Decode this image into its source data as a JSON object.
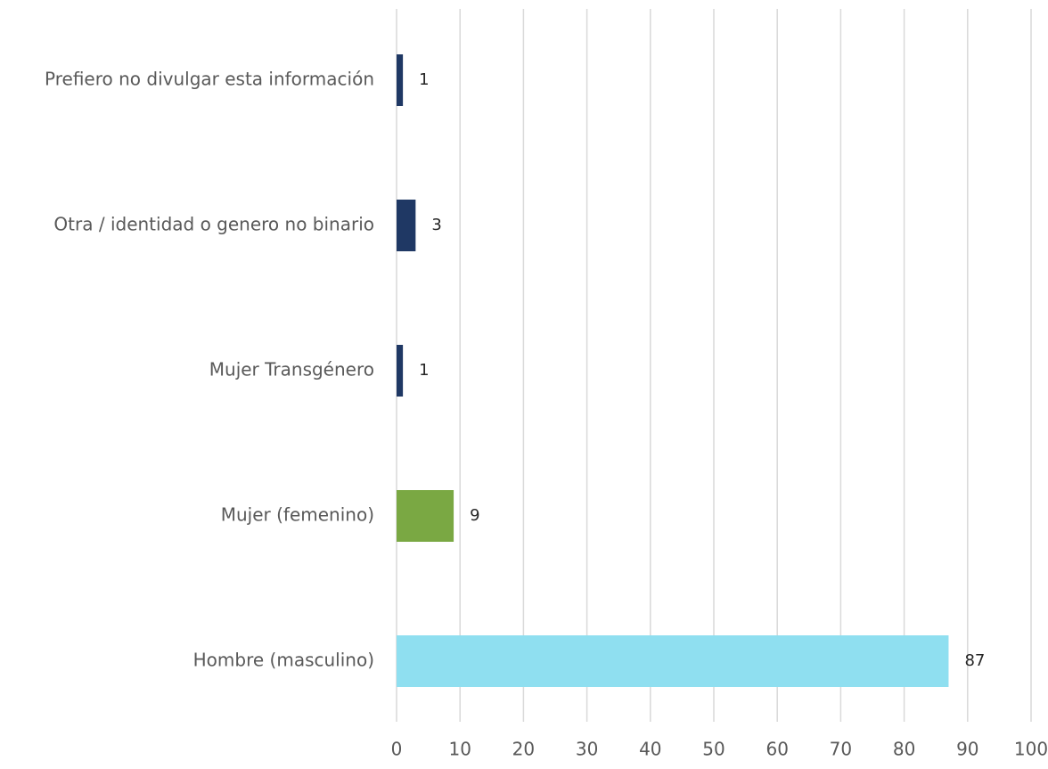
{
  "chart_data": {
    "type": "barh",
    "categories": [
      "Prefiero no divulgar esta información",
      "Otra / identidad o genero no binario",
      "Mujer Transgénero",
      "Mujer (femenino)",
      "Hombre (masculino)"
    ],
    "values": [
      1,
      3,
      1,
      9,
      87
    ],
    "colors": [
      "#1f3864",
      "#1f3864",
      "#1f3864",
      "#7aa843",
      "#8fdff0"
    ],
    "xlim": [
      0,
      100
    ],
    "xticks": [
      0,
      10,
      20,
      30,
      40,
      50,
      60,
      70,
      80,
      90,
      100
    ],
    "grid": true
  }
}
